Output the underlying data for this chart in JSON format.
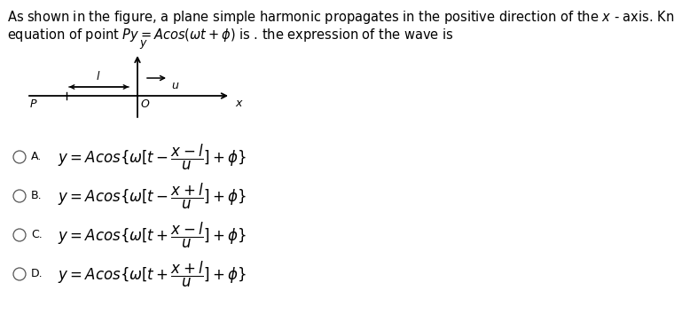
{
  "background_color": "#ffffff",
  "text_color": "#000000",
  "title_line1": "As shown in the figure, a plane simple harmonic propagates in the positive direction of the $x$ - axis. Knowing that  the vibration",
  "title_line2": "equation of point $Py = Acos(\\omega t + \\phi)$ is . the expression of the wave is",
  "title_fontsize": 10.5,
  "options": [
    {
      "label": "A.",
      "formula": "$y = Acos\\{\\omega[t - \\dfrac{x-l}{u}] + \\phi\\}$"
    },
    {
      "label": "B.",
      "formula": "$y = Acos\\{\\omega[t - \\dfrac{x+l}{u}] + \\phi\\}$"
    },
    {
      "label": "C.",
      "formula": "$y = Acos\\{\\omega[t + \\dfrac{x-l}{u}] + \\phi\\}$"
    },
    {
      "label": "D.",
      "formula": "$y = Acos\\{\\omega[t + \\dfrac{x+l}{u}] + \\phi\\}$"
    }
  ],
  "option_fontsize": 12,
  "label_fontsize": 9,
  "fig_width": 7.6,
  "fig_height": 3.54,
  "dpi": 100
}
